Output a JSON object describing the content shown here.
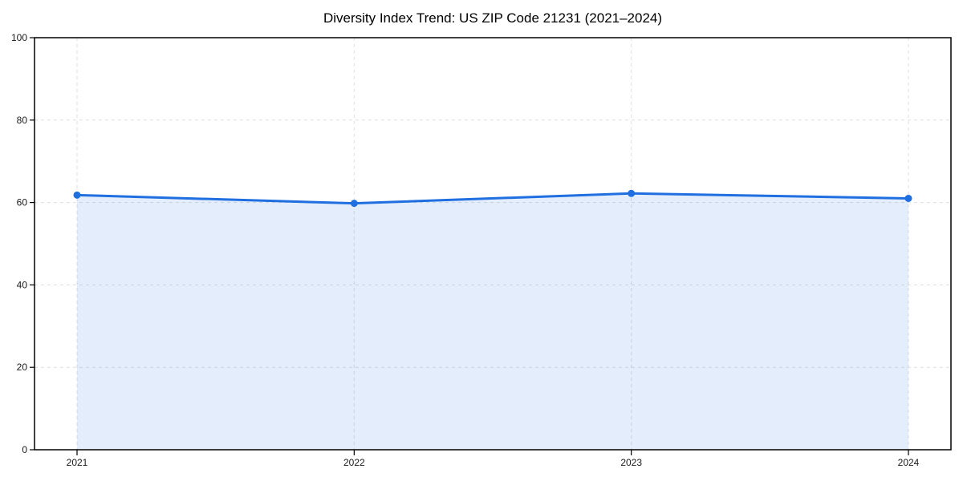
{
  "chart_data": {
    "type": "area",
    "title": "Diversity Index Trend: US ZIP Code 21231 (2021–2024)",
    "categories": [
      "2021",
      "2022",
      "2023",
      "2024"
    ],
    "series": [
      {
        "name": "Diversity Index",
        "values": [
          61.8,
          59.8,
          62.2,
          61.0
        ]
      }
    ],
    "xlabel": "",
    "ylabel": "",
    "ylim": [
      0,
      100
    ],
    "yticks": [
      0,
      20,
      40,
      60,
      80,
      100
    ],
    "grid": "on",
    "grid_style": "dashed",
    "legend_position": "none",
    "colors": {
      "line": "#1f6fe0",
      "marker": "#1f6fe0",
      "fill": "rgba(31,111,224,0.12)",
      "grid": "#dedede",
      "axis": "#000000",
      "text": "#000000",
      "background": "#ffffff"
    }
  }
}
